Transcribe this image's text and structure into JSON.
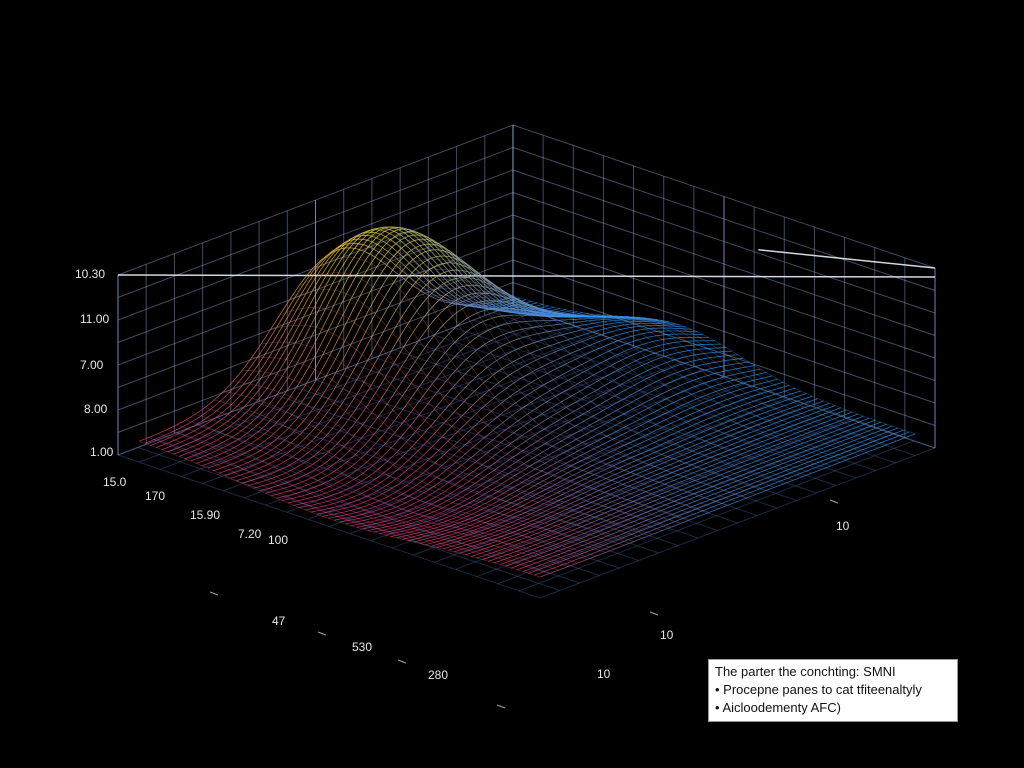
{
  "axis_labels": {
    "z": [
      "10.30",
      "11.00",
      "7.00",
      "8.00",
      "1.00"
    ],
    "left": [
      "15.0",
      "170",
      "15.90",
      "7.20",
      "100"
    ],
    "front": [
      "47",
      "530",
      "280"
    ],
    "right": [
      "10",
      "10",
      "10"
    ]
  },
  "legend": {
    "title": "The parter the conchting: SMNI",
    "items": [
      "Procepne panes to cat tfiteenaltyly",
      "Aicloodementy AFC)"
    ]
  }
}
